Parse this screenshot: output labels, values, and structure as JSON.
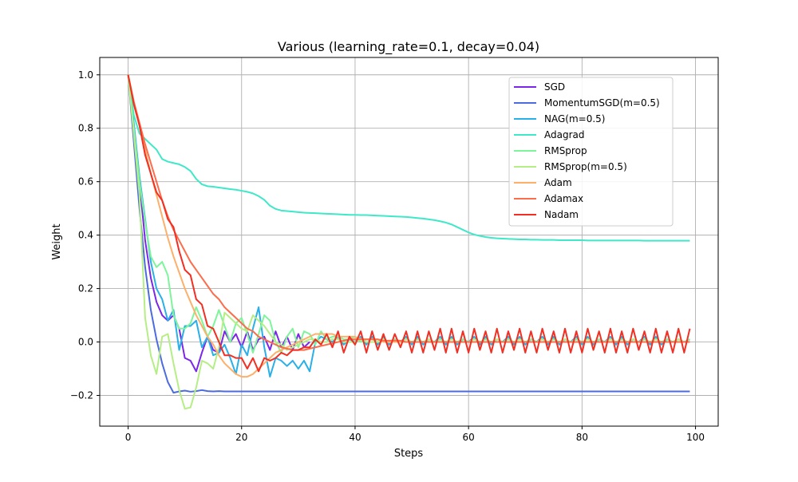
{
  "chart_data": {
    "type": "line",
    "title": "Various (learning_rate=0.1, decay=0.04)",
    "xlabel": "Steps",
    "ylabel": "Weight",
    "xlim": [
      -5,
      104
    ],
    "ylim": [
      -0.315,
      1.065
    ],
    "x_ticks": [
      0,
      20,
      40,
      60,
      80,
      100
    ],
    "y_ticks": [
      -0.2,
      0.0,
      0.2,
      0.4,
      0.6,
      0.8,
      1.0
    ],
    "x_tick_labels": [
      "0",
      "20",
      "40",
      "60",
      "80",
      "100"
    ],
    "y_tick_labels": [
      "−0.2",
      "0.0",
      "0.2",
      "0.4",
      "0.6",
      "0.8",
      "1.0"
    ],
    "grid": true,
    "legend_position": "upper-right",
    "series": [
      {
        "name": "SGD",
        "color": "#7b26e8",
        "values": [
          1.0,
          0.8,
          0.6,
          0.38,
          0.24,
          0.15,
          0.1,
          0.08,
          0.1,
          0.05,
          -0.06,
          -0.07,
          -0.11,
          -0.04,
          0.02,
          -0.03,
          -0.04,
          0.04,
          0.0,
          0.03,
          -0.02,
          0.04,
          -0.03,
          0.01,
          0.02,
          -0.03,
          0.04,
          -0.02,
          0.02,
          -0.03,
          0.03,
          -0.02,
          0.0
        ]
      },
      {
        "name": "MomentumSGD(m=0.5)",
        "color": "#4d6be0",
        "values": [
          1.0,
          0.75,
          0.5,
          0.28,
          0.12,
          0.01,
          -0.08,
          -0.15,
          -0.19,
          -0.185,
          -0.182,
          -0.186,
          -0.184,
          -0.18,
          -0.184,
          -0.185,
          -0.184,
          -0.185,
          -0.185,
          -0.185,
          -0.185,
          -0.185,
          -0.185,
          -0.185,
          -0.185,
          -0.185,
          -0.185,
          -0.185,
          -0.185,
          -0.185,
          -0.185,
          -0.185,
          -0.185,
          -0.185,
          -0.185,
          -0.185,
          -0.185,
          -0.185,
          -0.185,
          -0.185,
          -0.185,
          -0.185,
          -0.185,
          -0.185,
          -0.185,
          -0.185,
          -0.185,
          -0.185,
          -0.185,
          -0.185,
          -0.185,
          -0.185,
          -0.185,
          -0.185,
          -0.185,
          -0.185,
          -0.185,
          -0.185,
          -0.185,
          -0.185,
          -0.185,
          -0.185,
          -0.185,
          -0.185,
          -0.185,
          -0.185,
          -0.185,
          -0.185,
          -0.185,
          -0.185,
          -0.185,
          -0.185,
          -0.185,
          -0.185,
          -0.185,
          -0.185,
          -0.185,
          -0.185,
          -0.185,
          -0.185,
          -0.185,
          -0.185,
          -0.185,
          -0.185,
          -0.185,
          -0.185,
          -0.185,
          -0.185,
          -0.185,
          -0.185,
          -0.185,
          -0.185,
          -0.185,
          -0.185,
          -0.185,
          -0.185,
          -0.185,
          -0.185,
          -0.185,
          -0.185
        ]
      },
      {
        "name": "NAG(m=0.5)",
        "color": "#2ab0e8",
        "values": [
          1.0,
          0.82,
          0.62,
          0.46,
          0.3,
          0.2,
          0.16,
          0.08,
          0.12,
          -0.03,
          0.06,
          0.06,
          0.08,
          -0.02,
          0.02,
          -0.05,
          -0.04,
          -0.01,
          -0.06,
          -0.12,
          -0.01,
          -0.05,
          0.05,
          0.13,
          -0.02,
          -0.13,
          -0.06,
          -0.07,
          -0.09,
          -0.07,
          -0.1,
          -0.07,
          -0.11,
          0.0,
          0.02,
          0.01,
          0.0,
          0.02,
          -0.01,
          0.01,
          0.0,
          0.02,
          -0.01,
          0.02,
          -0.01,
          0.02,
          -0.01,
          0.01,
          0.0,
          0.02,
          -0.01,
          0.02,
          -0.01,
          0.01,
          0.0,
          0.02,
          -0.01,
          0.02,
          -0.01,
          0.01,
          0.0,
          0.02,
          -0.01,
          0.02,
          -0.01,
          0.01,
          0.0,
          0.02,
          -0.01,
          0.02,
          -0.01,
          0.01,
          0.0,
          0.02,
          -0.01,
          0.02,
          -0.01,
          0.01,
          0.0,
          0.02,
          -0.01,
          0.02,
          -0.01,
          0.01,
          0.0,
          0.02,
          -0.01,
          0.02,
          -0.01,
          0.01,
          0.0,
          0.02,
          -0.01,
          0.02,
          -0.01,
          0.01,
          0.0,
          0.01,
          0.0,
          0.01
        ]
      },
      {
        "name": "Adagrad",
        "color": "#3ee8c8",
        "values": [
          1.0,
          0.85,
          0.78,
          0.76,
          0.74,
          0.72,
          0.685,
          0.675,
          0.67,
          0.665,
          0.655,
          0.64,
          0.61,
          0.59,
          0.583,
          0.581,
          0.578,
          0.575,
          0.572,
          0.57,
          0.566,
          0.562,
          0.556,
          0.546,
          0.532,
          0.51,
          0.498,
          0.492,
          0.49,
          0.488,
          0.486,
          0.484,
          0.483,
          0.482,
          0.481,
          0.48,
          0.479,
          0.478,
          0.477,
          0.476,
          0.476,
          0.475,
          0.475,
          0.474,
          0.473,
          0.472,
          0.471,
          0.47,
          0.469,
          0.468,
          0.466,
          0.464,
          0.462,
          0.459,
          0.456,
          0.452,
          0.447,
          0.44,
          0.43,
          0.42,
          0.41,
          0.402,
          0.397,
          0.393,
          0.39,
          0.388,
          0.387,
          0.386,
          0.385,
          0.384,
          0.384,
          0.383,
          0.383,
          0.382,
          0.382,
          0.382,
          0.381,
          0.381,
          0.381,
          0.381,
          0.381,
          0.38,
          0.38,
          0.38,
          0.38,
          0.38,
          0.38,
          0.38,
          0.38,
          0.38,
          0.38,
          0.379,
          0.379,
          0.379,
          0.379,
          0.379,
          0.379,
          0.379,
          0.379,
          0.379
        ]
      },
      {
        "name": "RMSprop",
        "color": "#7ef59a",
        "values": [
          1.0,
          0.8,
          0.6,
          0.45,
          0.32,
          0.28,
          0.3,
          0.25,
          0.1,
          0.05,
          0.05,
          0.07,
          0.13,
          0.08,
          0.02,
          0.06,
          0.12,
          0.06,
          0.0,
          0.07,
          0.09,
          0.03,
          -0.04,
          0.03,
          0.1,
          0.08,
          0.0,
          -0.04,
          0.02,
          0.05,
          -0.02,
          0.04,
          0.03,
          -0.01,
          0.04,
          0.01,
          0.02,
          0.02,
          0.01,
          0.01,
          0.02,
          0.0,
          0.01,
          0.01,
          0.0,
          0.01,
          0.0,
          0.01,
          0.0,
          0.01,
          0.0,
          0.01,
          0.0,
          0.01,
          0.0,
          0.01,
          0.0,
          0.01,
          0.0,
          0.01,
          0.0,
          0.01,
          0.0,
          0.01,
          0.0,
          0.01,
          0.0,
          0.01,
          0.0,
          0.01,
          0.0,
          0.01,
          0.0,
          0.01,
          0.0,
          0.01,
          0.0,
          0.01,
          0.0,
          0.01,
          0.0,
          0.01,
          0.0,
          0.01,
          0.0,
          0.01,
          0.0,
          0.01,
          0.0,
          0.01,
          0.0,
          0.01,
          0.0,
          0.01,
          0.0,
          0.01,
          0.0,
          0.01,
          0.0,
          0.01
        ]
      },
      {
        "name": "RMSprop(m=0.5)",
        "color": "#b5ee86",
        "values": [
          1.0,
          0.78,
          0.55,
          0.09,
          -0.05,
          -0.12,
          0.02,
          0.03,
          -0.08,
          -0.18,
          -0.25,
          -0.245,
          -0.17,
          -0.07,
          -0.08,
          -0.1,
          -0.02,
          0.11,
          0.09,
          0.07,
          0.05,
          0.04,
          0.1,
          0.08,
          0.06,
          0.03,
          0.0,
          -0.01,
          -0.03,
          -0.02,
          -0.01,
          0.0,
          0.01,
          0.01,
          0.0,
          0.0,
          0.01,
          0.01,
          0.0,
          0.0,
          0.0,
          0.01,
          0.0,
          0.0,
          0.0,
          0.01,
          0.0,
          0.0,
          0.0,
          0.01,
          0.0,
          0.0,
          0.0,
          0.01,
          0.0,
          0.0,
          0.0,
          0.01,
          0.0,
          0.0,
          0.0,
          0.01,
          0.0,
          0.0,
          0.0,
          0.01,
          0.0,
          0.0,
          0.0,
          0.01,
          0.0,
          0.0,
          0.0,
          0.01,
          0.0,
          0.0,
          0.0,
          0.01,
          0.0,
          0.0,
          0.0,
          0.01,
          0.0,
          0.0,
          0.0,
          0.01,
          0.0,
          0.0,
          0.0,
          0.01,
          0.0,
          0.0,
          0.0,
          0.01,
          0.0,
          0.0,
          0.0,
          0.01,
          0.0,
          0.0
        ]
      },
      {
        "name": "Adam",
        "color": "#fdb06a",
        "values": [
          1.0,
          0.9,
          0.81,
          0.72,
          0.63,
          0.55,
          0.47,
          0.39,
          0.32,
          0.26,
          0.2,
          0.15,
          0.1,
          0.06,
          0.02,
          -0.01,
          -0.05,
          -0.08,
          -0.1,
          -0.12,
          -0.13,
          -0.13,
          -0.12,
          -0.1,
          -0.08,
          -0.06,
          -0.04,
          -0.03,
          -0.02,
          -0.01,
          0.0,
          0.01,
          0.02,
          0.03,
          0.03,
          0.03,
          0.03,
          0.02,
          0.02,
          0.02,
          0.02,
          0.01,
          0.01,
          0.01,
          0.01,
          0.0,
          0.0,
          0.0,
          0.0,
          0.0,
          0.0,
          0.0,
          0.0,
          0.0,
          0.0,
          0.0,
          0.0,
          0.0,
          0.0,
          0.0,
          0.0,
          0.0,
          0.0,
          0.0,
          0.0,
          0.0,
          0.0,
          0.0,
          0.0,
          0.0,
          0.0,
          0.0,
          0.0,
          0.0,
          0.0,
          0.0,
          0.0,
          0.0,
          0.0,
          0.0,
          0.0,
          0.0,
          0.0,
          0.0,
          0.0,
          0.0,
          0.0,
          0.0,
          0.0,
          0.0,
          0.0,
          0.0,
          0.0,
          0.0,
          0.0,
          0.0,
          0.0,
          0.0,
          0.0,
          0.0
        ]
      },
      {
        "name": "Adamax",
        "color": "#fc6d4c",
        "values": [
          1.0,
          0.9,
          0.82,
          0.74,
          0.67,
          0.6,
          0.53,
          0.47,
          0.42,
          0.38,
          0.34,
          0.3,
          0.27,
          0.24,
          0.21,
          0.18,
          0.16,
          0.13,
          0.11,
          0.09,
          0.07,
          0.05,
          0.04,
          0.02,
          0.01,
          0.0,
          -0.01,
          -0.02,
          -0.025,
          -0.03,
          -0.03,
          -0.03,
          -0.025,
          -0.02,
          -0.015,
          -0.01,
          -0.005,
          0.0,
          0.005,
          0.01,
          0.01,
          0.01,
          0.01,
          0.01,
          0.01,
          0.005,
          0.005,
          0.005,
          0.005,
          0.0,
          0.0,
          0.0,
          0.0,
          0.0,
          0.0,
          0.0,
          0.0,
          0.0,
          0.0,
          0.0,
          0.0,
          0.0,
          0.0,
          0.0,
          0.0,
          0.0,
          0.0,
          0.0,
          0.0,
          0.0,
          0.0,
          0.0,
          0.0,
          0.0,
          0.0,
          0.0,
          0.0,
          0.0,
          0.0,
          0.0,
          0.0,
          0.0,
          0.0,
          0.0,
          0.0,
          0.0,
          0.0,
          0.0,
          0.0,
          0.0,
          0.0,
          0.0,
          0.0,
          0.0,
          0.0,
          0.0,
          0.0,
          0.0,
          0.0,
          0.0
        ]
      },
      {
        "name": "Nadam",
        "color": "#f12f22",
        "values": [
          1.0,
          0.89,
          0.81,
          0.7,
          0.63,
          0.56,
          0.53,
          0.46,
          0.43,
          0.34,
          0.27,
          0.25,
          0.16,
          0.14,
          0.06,
          0.05,
          0.0,
          -0.05,
          -0.05,
          -0.06,
          -0.06,
          -0.1,
          -0.06,
          -0.11,
          -0.06,
          -0.07,
          -0.06,
          -0.04,
          -0.05,
          -0.03,
          -0.03,
          -0.02,
          -0.02,
          0.01,
          -0.01,
          0.03,
          -0.02,
          0.04,
          -0.04,
          0.02,
          -0.01,
          0.04,
          -0.04,
          0.04,
          -0.03,
          0.03,
          -0.03,
          0.03,
          -0.02,
          0.04,
          -0.04,
          0.04,
          -0.04,
          0.04,
          -0.03,
          0.05,
          -0.04,
          0.05,
          -0.04,
          0.04,
          -0.04,
          0.05,
          -0.03,
          0.04,
          -0.04,
          0.05,
          -0.04,
          0.04,
          -0.03,
          0.05,
          -0.04,
          0.04,
          -0.04,
          0.05,
          -0.03,
          0.04,
          -0.04,
          0.05,
          -0.04,
          0.04,
          -0.04,
          0.05,
          -0.03,
          0.04,
          -0.04,
          0.05,
          -0.04,
          0.04,
          -0.04,
          0.05,
          -0.03,
          0.04,
          -0.04,
          0.05,
          -0.04,
          0.04,
          -0.04,
          0.05,
          -0.04,
          0.05
        ]
      }
    ]
  }
}
